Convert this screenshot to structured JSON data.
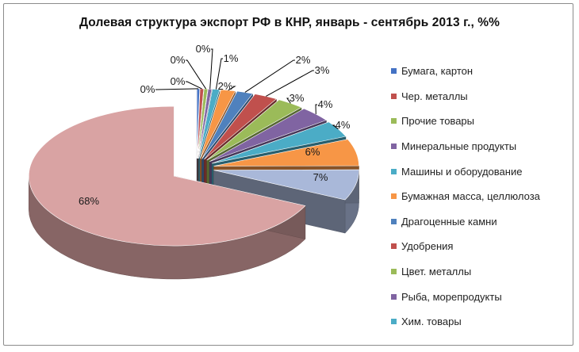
{
  "chart_data": {
    "type": "pie",
    "title": "Долевая структура экспорт РФ в КНР, январь - сентябрь 2013 г., %%",
    "slices": [
      {
        "name": "Бумага, картон",
        "value": 0.3,
        "label": "0%",
        "color": "#4472C4"
      },
      {
        "name": "Чер. металлы",
        "value": 0.4,
        "label": "0%",
        "color": "#C0504D"
      },
      {
        "name": "Прочие товары",
        "value": 0.4,
        "label": "0%",
        "color": "#9BBB59"
      },
      {
        "name": "Минеральные продукты",
        "value": 0.4,
        "label": "0%",
        "color": "#8064A2"
      },
      {
        "name": "Машины и оборудование",
        "value": 0.8,
        "label": "1%",
        "color": "#4BACC6"
      },
      {
        "name": "Бумажная масса, целлюлоза",
        "value": 1.6,
        "label": "2%",
        "color": "#F79646"
      },
      {
        "name": "Драгоценные камни",
        "value": 1.8,
        "label": "2%",
        "color": "#4F81BD"
      },
      {
        "name": "Удобрения",
        "value": 2.6,
        "label": "3%",
        "color": "#C0504D"
      },
      {
        "name": "Цвет. металлы",
        "value": 3.0,
        "label": "3%",
        "color": "#9BBB59"
      },
      {
        "name": "Рыба, морепродукты",
        "value": 3.6,
        "label": "4%",
        "color": "#8064A2"
      },
      {
        "name": "Хим. товары",
        "value": 3.8,
        "label": "4%",
        "color": "#4BACC6"
      },
      {
        "name": "",
        "value": 6.2,
        "label": "6%",
        "color": "#F79646"
      },
      {
        "name": "",
        "value": 7.1,
        "label": "7%",
        "color": "#A9B8D9"
      },
      {
        "name": "",
        "value": 68.0,
        "label": "68%",
        "color": "#D9A3A3"
      }
    ],
    "legend_position": "right"
  }
}
